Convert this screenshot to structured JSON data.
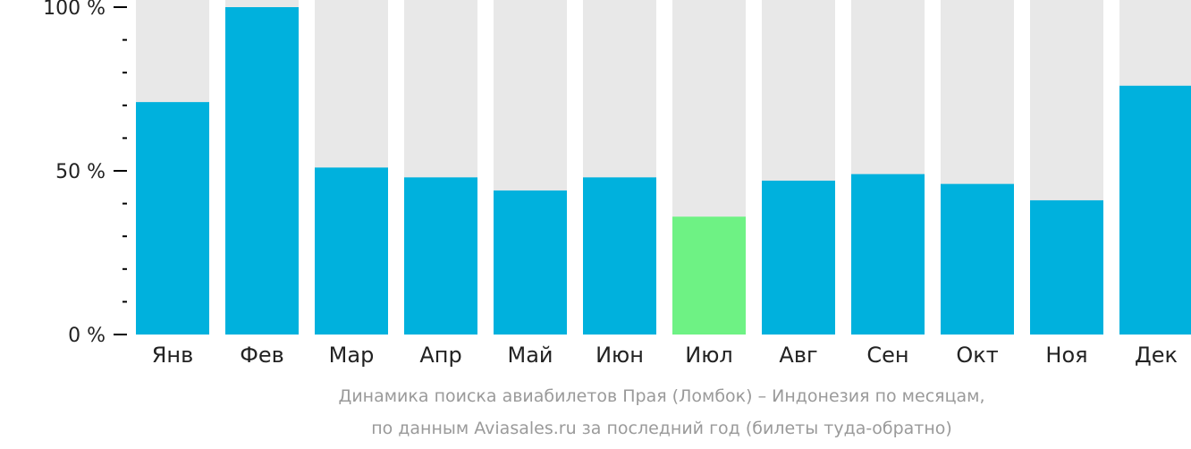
{
  "chart_data": {
    "type": "bar",
    "categories": [
      "Янв",
      "Фев",
      "Мар",
      "Апр",
      "Май",
      "Июн",
      "Июл",
      "Авг",
      "Сен",
      "Окт",
      "Ноя",
      "Дек"
    ],
    "values": [
      71,
      100,
      51,
      48,
      44,
      48,
      36,
      47,
      49,
      46,
      41,
      76
    ],
    "ylim": [
      0,
      100
    ],
    "yticks": [
      "0 %",
      "50 %",
      "100 %"
    ],
    "highlight_index": 6,
    "colors": {
      "bar": "#00b1dd",
      "highlight": "#6ef284",
      "background_bar": "#e8e8e8",
      "axis": "#000000"
    }
  },
  "caption": {
    "line1": "Динамика поиска авиабилетов Прая (Ломбок) – Индонезия по месяцам,",
    "line2": "по данным Aviasales.ru за последний год (билеты туда-обратно)"
  }
}
